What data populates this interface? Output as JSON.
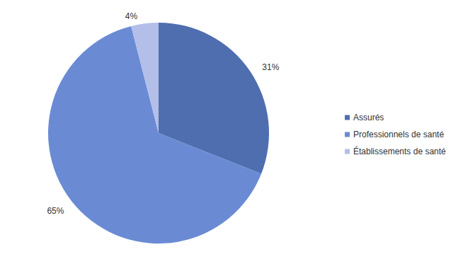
{
  "chart_data": {
    "type": "pie",
    "categories": [
      "Assurés",
      "Professionnels de santé",
      "Établissements de santé"
    ],
    "values": [
      31,
      65,
      4
    ],
    "value_labels": [
      "31%",
      "65%",
      "4%"
    ],
    "colors": [
      "#4f6eb0",
      "#6a8bd4",
      "#b3bfe8"
    ],
    "data_labels": true,
    "legend": "right"
  }
}
